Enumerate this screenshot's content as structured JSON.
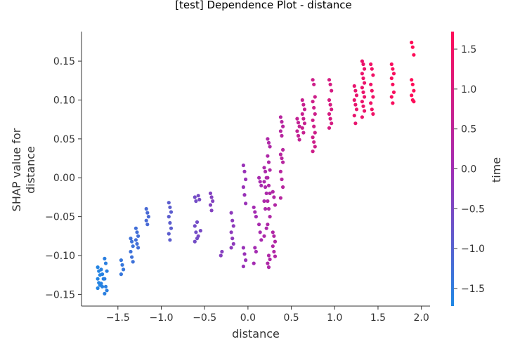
{
  "chart_data": {
    "type": "scatter",
    "title": "[test] Dependence Plot - distance",
    "xlabel": "distance",
    "ylabel_lines": [
      "SHAP value for",
      "distance"
    ],
    "colorbar_label": "time",
    "xlim": [
      -1.92,
      2.1
    ],
    "ylim": [
      -0.165,
      0.188
    ],
    "x_ticks": [
      -1.5,
      -1.0,
      -0.5,
      0.0,
      0.5,
      1.0,
      1.5,
      2.0
    ],
    "x_tick_labels": [
      "−1.5",
      "−1.0",
      "−0.5",
      "0.0",
      "0.5",
      "1.0",
      "1.5",
      "2.0"
    ],
    "y_ticks": [
      -0.15,
      -0.1,
      -0.05,
      0.0,
      0.05,
      0.1,
      0.15
    ],
    "y_tick_labels": [
      "−0.15",
      "−0.10",
      "−0.05",
      "0.00",
      "0.05",
      "0.10",
      "0.15"
    ],
    "color_range": [
      -1.72,
      1.72
    ],
    "colorbar_ticks": [
      -1.5,
      -1.0,
      -0.5,
      0.0,
      0.5,
      1.0,
      1.5
    ],
    "colorbar_tick_labels": [
      "−1.5",
      "−1.0",
      "−0.5",
      "0.0",
      "0.5",
      "1.0",
      "1.5"
    ],
    "color_low": "#1e88e5",
    "color_high": "#ff0d57",
    "columns": [
      {
        "x": -1.72,
        "y": [
          -0.115,
          -0.12,
          -0.125,
          -0.13,
          -0.135,
          -0.138,
          -0.142
        ],
        "c": -1.65
      },
      {
        "x": -1.68,
        "y": [
          -0.118,
          -0.124,
          -0.13,
          -0.136,
          -0.14
        ],
        "c": -1.6
      },
      {
        "x": -1.64,
        "y": [
          -0.104,
          -0.11,
          -0.12,
          -0.13,
          -0.14,
          -0.145,
          -0.149
        ],
        "c": -1.55
      },
      {
        "x": -1.45,
        "y": [
          -0.106,
          -0.112,
          -0.118,
          -0.124
        ],
        "c": -1.4
      },
      {
        "x": -1.34,
        "y": [
          -0.078,
          -0.082,
          -0.088,
          -0.095,
          -0.102,
          -0.108
        ],
        "c": -1.3
      },
      {
        "x": -1.28,
        "y": [
          -0.065,
          -0.07,
          -0.075,
          -0.08,
          -0.085,
          -0.09
        ],
        "c": -1.25
      },
      {
        "x": -1.16,
        "y": [
          -0.04,
          -0.045,
          -0.05,
          -0.055,
          -0.06
        ],
        "c": -1.15
      },
      {
        "x": -0.9,
        "y": [
          -0.032,
          -0.038,
          -0.044,
          -0.05,
          -0.058,
          -0.065,
          -0.072,
          -0.08
        ],
        "c": -0.9
      },
      {
        "x": -0.6,
        "y": [
          -0.025,
          -0.03,
          -0.057,
          -0.062,
          -0.07,
          -0.078,
          -0.082
        ],
        "c": -0.6
      },
      {
        "x": -0.56,
        "y": [
          -0.023,
          -0.028,
          -0.068,
          -0.075
        ],
        "c": -0.55
      },
      {
        "x": -0.42,
        "y": [
          -0.02,
          -0.025,
          -0.03,
          -0.035,
          -0.042
        ],
        "c": -0.4
      },
      {
        "x": -0.3,
        "y": [
          -0.1,
          -0.095
        ],
        "c": -0.35
      },
      {
        "x": -0.18,
        "y": [
          -0.045,
          -0.055,
          -0.062,
          -0.07,
          -0.078,
          -0.085,
          -0.09
        ],
        "c": -0.25
      },
      {
        "x": -0.04,
        "y": [
          0.016,
          0.008,
          -0.002,
          -0.012,
          -0.022,
          -0.033,
          -0.09,
          -0.098,
          -0.106,
          -0.114
        ],
        "c": -0.1
      },
      {
        "x": 0.08,
        "y": [
          -0.038,
          -0.044,
          -0.05,
          -0.11,
          -0.09,
          -0.095
        ],
        "c": 0.05
      },
      {
        "x": 0.14,
        "y": [
          0.0,
          -0.005,
          -0.01,
          -0.06,
          -0.07,
          -0.08
        ],
        "c": 0.12
      },
      {
        "x": 0.2,
        "y": [
          0.013,
          0.008,
          0.0,
          -0.005,
          -0.012,
          -0.02,
          -0.03,
          -0.04,
          -0.065,
          -0.075
        ],
        "c": 0.2
      },
      {
        "x": 0.24,
        "y": [
          0.05,
          0.045,
          0.04,
          0.028,
          0.02,
          0.01,
          0.0,
          -0.01,
          -0.02,
          -0.03,
          -0.04,
          -0.05,
          -0.06,
          -0.1,
          -0.105,
          -0.11,
          -0.115
        ],
        "c": 0.25
      },
      {
        "x": 0.3,
        "y": [
          -0.018,
          -0.025,
          -0.035,
          -0.07,
          -0.075,
          -0.082,
          -0.088,
          -0.095,
          -0.101
        ],
        "c": 0.3
      },
      {
        "x": 0.39,
        "y": [
          0.078,
          0.072,
          0.066,
          0.06,
          0.054,
          0.036,
          0.03,
          0.025,
          0.02,
          0.008,
          -0.002,
          -0.012,
          -0.026
        ],
        "c": 0.4
      },
      {
        "x": 0.58,
        "y": [
          0.076,
          0.071,
          0.066,
          0.06,
          0.054,
          0.049
        ],
        "c": 0.6
      },
      {
        "x": 0.64,
        "y": [
          0.1,
          0.094,
          0.088,
          0.082,
          0.076,
          0.07,
          0.064,
          0.058
        ],
        "c": 0.7
      },
      {
        "x": 0.76,
        "y": [
          0.126,
          0.12,
          0.104,
          0.098,
          0.09,
          0.082,
          0.074,
          0.066,
          0.058,
          0.052,
          0.046,
          0.04,
          0.034
        ],
        "c": 0.8
      },
      {
        "x": 0.95,
        "y": [
          0.126,
          0.12,
          0.112,
          0.1,
          0.094,
          0.088,
          0.082,
          0.076,
          0.07,
          0.064
        ],
        "c": 0.95
      },
      {
        "x": 1.24,
        "y": [
          0.118,
          0.112,
          0.106,
          0.1,
          0.094,
          0.088,
          0.08,
          0.07
        ],
        "c": 1.3
      },
      {
        "x": 1.33,
        "y": [
          0.15,
          0.146,
          0.14,
          0.134,
          0.128,
          0.122,
          0.116,
          0.11,
          0.104,
          0.098,
          0.092,
          0.086,
          0.078
        ],
        "c": 1.35
      },
      {
        "x": 1.43,
        "y": [
          0.146,
          0.14,
          0.132,
          0.12,
          0.112,
          0.104,
          0.096,
          0.088,
          0.082
        ],
        "c": 1.45
      },
      {
        "x": 1.67,
        "y": [
          0.146,
          0.14,
          0.134,
          0.128,
          0.12,
          0.11,
          0.104,
          0.096
        ],
        "c": 1.6
      },
      {
        "x": 1.9,
        "y": [
          0.174,
          0.168,
          0.158,
          0.126,
          0.12,
          0.112,
          0.106,
          0.1,
          0.098
        ],
        "c": 1.7
      }
    ]
  }
}
